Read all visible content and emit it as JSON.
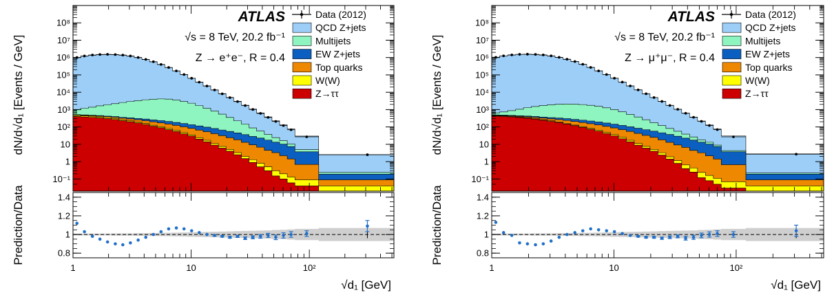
{
  "chart_data": [
    {
      "type": "area",
      "id": "ee",
      "title": "ATLAS",
      "info_line1": "√s = 8 TeV, 20.2 fb⁻¹",
      "info_line2": "Z → e⁺e⁻, R = 0.4",
      "xlabel": "√d₁ [GeV]",
      "ylabel": "dN/d√d₁ [Events / GeV]",
      "ratio_ylabel": "Prediction/Data",
      "xscale": "log",
      "yscale": "log",
      "xlim": [
        1,
        520
      ],
      "ylim": [
        0.02,
        1000000000.0
      ],
      "ratio_ylim": [
        0.75,
        1.45
      ],
      "legend_position": "top-right",
      "x_tick_labels": [
        "1",
        "10",
        "10²"
      ],
      "y_tick_labels": [
        "10⁻¹",
        "1",
        "10",
        "10²",
        "10³",
        "10⁴",
        "10⁵",
        "10⁶",
        "10⁷",
        "10⁸"
      ],
      "ratio_tick_labels": [
        "0.8",
        "1",
        "1.2",
        "1.4"
      ],
      "bin_edges": [
        1,
        1.16,
        1.35,
        1.57,
        1.82,
        2.11,
        2.45,
        2.84,
        3.3,
        3.83,
        4.44,
        5.16,
        5.99,
        6.95,
        8.07,
        9.37,
        10.87,
        12.62,
        14.65,
        17.01,
        19.74,
        22.91,
        26.6,
        30.87,
        35.83,
        41.6,
        48.28,
        56.04,
        65.05,
        75.51,
        120,
        520
      ],
      "series": [
        {
          "name": "Z→ττ",
          "color": "#cc0000",
          "values": [
            400,
            380,
            360,
            330,
            300,
            270,
            230,
            200,
            170,
            140,
            110,
            90,
            70,
            55,
            40,
            30,
            20,
            14,
            9,
            6,
            4,
            2.5,
            1.5,
            0.9,
            0.5,
            0.3,
            0.15,
            0.1,
            0.06,
            0.04,
            0.02
          ]
        },
        {
          "name": "W(W)",
          "color": "#ffff00",
          "values": [
            60,
            55,
            50,
            45,
            40,
            35,
            30,
            25,
            20,
            18,
            15,
            13,
            11,
            9,
            7,
            5,
            4,
            3,
            2,
            1.5,
            1,
            0.8,
            0.5,
            0.4,
            0.3,
            0.2,
            0.15,
            0.1,
            0.07,
            0.05,
            0.02
          ]
        },
        {
          "name": "Top quarks",
          "color": "#ee8800",
          "values": [
            30,
            35,
            40,
            45,
            50,
            55,
            60,
            65,
            70,
            72,
            72,
            70,
            66,
            60,
            55,
            48,
            42,
            36,
            30,
            24,
            19,
            15,
            11,
            8,
            6,
            4,
            3,
            2,
            1.3,
            0.6,
            0.05
          ]
        },
        {
          "name": "EW Z+jets",
          "color": "#0b5fc1",
          "values": [
            20,
            22,
            25,
            28,
            32,
            36,
            40,
            45,
            50,
            55,
            58,
            60,
            60,
            58,
            55,
            52,
            48,
            44,
            40,
            35,
            31,
            27,
            23,
            19,
            16,
            13,
            10,
            8,
            6,
            3,
            0.1
          ]
        },
        {
          "name": "Multijets",
          "color": "#8ef5c0",
          "values": [
            500,
            700,
            900,
            1200,
            1500,
            1800,
            2200,
            2600,
            3000,
            3400,
            3700,
            3900,
            3800,
            3400,
            2800,
            2200,
            1600,
            1100,
            750,
            480,
            300,
            180,
            110,
            60,
            35,
            20,
            11,
            6,
            3,
            1.2,
            0.05
          ]
        },
        {
          "name": "QCD Z+jets",
          "color": "#9dcef7",
          "values": [
            1000000,
            1200000,
            1350000,
            1450000,
            1480000,
            1450000,
            1350000,
            1200000,
            980000,
            760000,
            560000,
            390000,
            260000,
            165000,
            102000,
            62000,
            37000,
            22000,
            13000,
            7800,
            4700,
            2800,
            1650,
            980,
            580,
            340,
            200,
            115,
            66,
            25,
            2.3
          ]
        }
      ],
      "data_points": {
        "name": "Data (2012)",
        "x": [
          1.08,
          1.25,
          1.46,
          1.69,
          1.96,
          2.28,
          2.64,
          3.06,
          3.56,
          4.13,
          4.79,
          5.56,
          6.45,
          7.49,
          8.7,
          10.09,
          11.71,
          13.6,
          15.78,
          18.33,
          21.27,
          24.7,
          28.66,
          33.26,
          38.61,
          44.81,
          52.01,
          60.38,
          70.09,
          95,
          310
        ],
        "y": [
          1000000,
          1230000,
          1400000,
          1500000,
          1530000,
          1490000,
          1390000,
          1230000,
          1010000,
          780000,
          575000,
          400000,
          267000,
          170000,
          105000,
          64000,
          38200,
          22800,
          13500,
          8100,
          4900,
          2900,
          1720,
          1020,
          605,
          355,
          208,
          120,
          69,
          27,
          2.5
        ]
      },
      "ratio_points": {
        "x": [
          1.08,
          1.25,
          1.46,
          1.69,
          1.96,
          2.28,
          2.64,
          3.06,
          3.56,
          4.13,
          4.79,
          5.56,
          6.45,
          7.49,
          8.7,
          10.09,
          11.71,
          13.6,
          15.78,
          18.33,
          21.27,
          24.7,
          28.66,
          33.26,
          38.61,
          44.81,
          52.01,
          60.38,
          70.09,
          95,
          310
        ],
        "y": [
          1.12,
          1.03,
          0.98,
          0.95,
          0.92,
          0.9,
          0.89,
          0.91,
          0.94,
          0.97,
          1.0,
          1.03,
          1.06,
          1.07,
          1.06,
          1.04,
          1.02,
          1.0,
          0.99,
          0.98,
          0.97,
          0.98,
          0.96,
          0.97,
          0.98,
          0.99,
          0.97,
          0.99,
          1.0,
          1.01,
          1.09
        ],
        "err": [
          0.003,
          0.003,
          0.003,
          0.003,
          0.003,
          0.003,
          0.003,
          0.003,
          0.003,
          0.003,
          0.003,
          0.003,
          0.003,
          0.003,
          0.004,
          0.005,
          0.005,
          0.006,
          0.008,
          0.009,
          0.01,
          0.012,
          0.014,
          0.016,
          0.02,
          0.022,
          0.025,
          0.028,
          0.03,
          0.03,
          0.06
        ],
        "sys_band": [
          0.01,
          0.01,
          0.01,
          0.01,
          0.01,
          0.012,
          0.012,
          0.012,
          0.014,
          0.014,
          0.016,
          0.018,
          0.018,
          0.02,
          0.022,
          0.024,
          0.026,
          0.028,
          0.03,
          0.032,
          0.034,
          0.036,
          0.038,
          0.04,
          0.042,
          0.044,
          0.048,
          0.05,
          0.055,
          0.06,
          0.07
        ]
      }
    },
    {
      "type": "area",
      "id": "mumu",
      "title": "ATLAS",
      "info_line1": "√s = 8 TeV, 20.2 fb⁻¹",
      "info_line2": "Z → μ⁺μ⁻, R = 0.4",
      "xlabel": "√d₁ [GeV]",
      "ylabel": "dN/d√d₁ [Events / GeV]",
      "ratio_ylabel": "Prediction/Data",
      "xscale": "log",
      "yscale": "log",
      "xlim": [
        1,
        520
      ],
      "ylim": [
        0.02,
        1000000000.0
      ],
      "ratio_ylim": [
        0.75,
        1.45
      ],
      "legend_position": "top-right",
      "x_tick_labels": [
        "1",
        "10",
        "10²"
      ],
      "y_tick_labels": [
        "10⁻¹",
        "1",
        "10",
        "10²",
        "10³",
        "10⁴",
        "10⁵",
        "10⁶",
        "10⁷",
        "10⁸"
      ],
      "ratio_tick_labels": [
        "0.8",
        "1",
        "1.2",
        "1.4"
      ],
      "bin_edges": [
        1,
        1.16,
        1.35,
        1.57,
        1.82,
        2.11,
        2.45,
        2.84,
        3.3,
        3.83,
        4.44,
        5.16,
        5.99,
        6.95,
        8.07,
        9.37,
        10.87,
        12.62,
        14.65,
        17.01,
        19.74,
        22.91,
        26.6,
        30.87,
        35.83,
        41.6,
        48.28,
        56.04,
        65.05,
        75.51,
        120,
        520
      ],
      "series": [
        {
          "name": "Z→ττ",
          "color": "#cc0000",
          "values": [
            420,
            400,
            380,
            350,
            320,
            285,
            245,
            210,
            180,
            148,
            118,
            95,
            74,
            58,
            42,
            31,
            21,
            14,
            9,
            6,
            4,
            2.4,
            1.4,
            0.8,
            0.4,
            0.25,
            0.12,
            0.08,
            0.05,
            0.03,
            0.02
          ]
        },
        {
          "name": "W(W)",
          "color": "#ffff00",
          "values": [
            30,
            28,
            26,
            24,
            22,
            20,
            18,
            16,
            14,
            12,
            10,
            9,
            8,
            7,
            6,
            5,
            4,
            3,
            2.2,
            1.6,
            1.1,
            0.8,
            0.5,
            0.35,
            0.25,
            0.18,
            0.12,
            0.08,
            0.06,
            0.04,
            0.02
          ]
        },
        {
          "name": "Top quarks",
          "color": "#ee8800",
          "values": [
            20,
            25,
            30,
            36,
            42,
            50,
            58,
            66,
            72,
            76,
            78,
            76,
            72,
            66,
            60,
            52,
            45,
            38,
            31,
            25,
            20,
            15,
            11,
            8,
            6,
            4,
            3,
            2,
            1.3,
            0.6,
            0.05
          ]
        },
        {
          "name": "EW Z+jets",
          "color": "#0b5fc1",
          "values": [
            25,
            28,
            32,
            36,
            40,
            45,
            50,
            55,
            60,
            64,
            66,
            67,
            66,
            63,
            60,
            56,
            52,
            47,
            42,
            37,
            32,
            28,
            24,
            20,
            16,
            13,
            10,
            8,
            6,
            3,
            0.1
          ]
        },
        {
          "name": "Multijets",
          "color": "#8ef5c0",
          "values": [
            150,
            250,
            400,
            600,
            850,
            1100,
            1350,
            1550,
            1700,
            1800,
            1800,
            1700,
            1550,
            1350,
            1100,
            850,
            620,
            430,
            290,
            190,
            120,
            75,
            45,
            27,
            16,
            9,
            5,
            3,
            1.6,
            0.6,
            0.03
          ]
        },
        {
          "name": "QCD Z+jets",
          "color": "#9dcef7",
          "values": [
            1050000,
            1250000,
            1400000,
            1500000,
            1520000,
            1480000,
            1380000,
            1220000,
            1000000,
            780000,
            575000,
            400000,
            268000,
            170000,
            105000,
            64000,
            38000,
            22600,
            13400,
            8000,
            4800,
            2850,
            1680,
            1000,
            590,
            345,
            202,
            117,
            67,
            26,
            2.6
          ]
        }
      ],
      "data_points": {
        "name": "Data (2012)",
        "x": [
          1.08,
          1.25,
          1.46,
          1.69,
          1.96,
          2.28,
          2.64,
          3.06,
          3.56,
          4.13,
          4.79,
          5.56,
          6.45,
          7.49,
          8.7,
          10.09,
          11.71,
          13.6,
          15.78,
          18.33,
          21.27,
          24.7,
          28.66,
          33.26,
          38.61,
          44.81,
          52.01,
          60.38,
          70.09,
          95,
          310
        ],
        "y": [
          1030000,
          1250000,
          1420000,
          1530000,
          1560000,
          1520000,
          1420000,
          1250000,
          1030000,
          800000,
          590000,
          408000,
          270000,
          170000,
          105000,
          64500,
          38700,
          23100,
          13700,
          8200,
          4950,
          2950,
          1740,
          1040,
          615,
          360,
          210,
          122,
          70,
          27,
          2.7
        ]
      },
      "ratio_points": {
        "x": [
          1.08,
          1.25,
          1.46,
          1.69,
          1.96,
          2.28,
          2.64,
          3.06,
          3.56,
          4.13,
          4.79,
          5.56,
          6.45,
          7.49,
          8.7,
          10.09,
          11.71,
          13.6,
          15.78,
          18.33,
          21.27,
          24.7,
          28.66,
          33.26,
          38.61,
          44.81,
          52.01,
          60.38,
          70.09,
          95,
          310
        ],
        "y": [
          1.13,
          1.02,
          0.99,
          0.91,
          0.9,
          0.89,
          0.9,
          0.93,
          0.97,
          1.0,
          1.02,
          1.04,
          1.06,
          1.05,
          1.04,
          1.03,
          1.01,
          0.99,
          0.98,
          0.97,
          0.97,
          0.96,
          0.97,
          0.98,
          0.96,
          0.97,
          0.99,
          1.0,
          1.01,
          1.0,
          1.04
        ],
        "err": [
          0.003,
          0.003,
          0.003,
          0.003,
          0.003,
          0.003,
          0.003,
          0.003,
          0.003,
          0.003,
          0.003,
          0.003,
          0.003,
          0.003,
          0.004,
          0.005,
          0.005,
          0.006,
          0.008,
          0.009,
          0.01,
          0.012,
          0.014,
          0.016,
          0.02,
          0.022,
          0.025,
          0.028,
          0.03,
          0.03,
          0.06
        ],
        "sys_band": [
          0.01,
          0.01,
          0.01,
          0.01,
          0.01,
          0.012,
          0.012,
          0.012,
          0.014,
          0.014,
          0.016,
          0.018,
          0.018,
          0.02,
          0.022,
          0.024,
          0.026,
          0.028,
          0.03,
          0.032,
          0.034,
          0.036,
          0.038,
          0.04,
          0.042,
          0.044,
          0.048,
          0.05,
          0.055,
          0.06,
          0.07
        ]
      }
    }
  ]
}
